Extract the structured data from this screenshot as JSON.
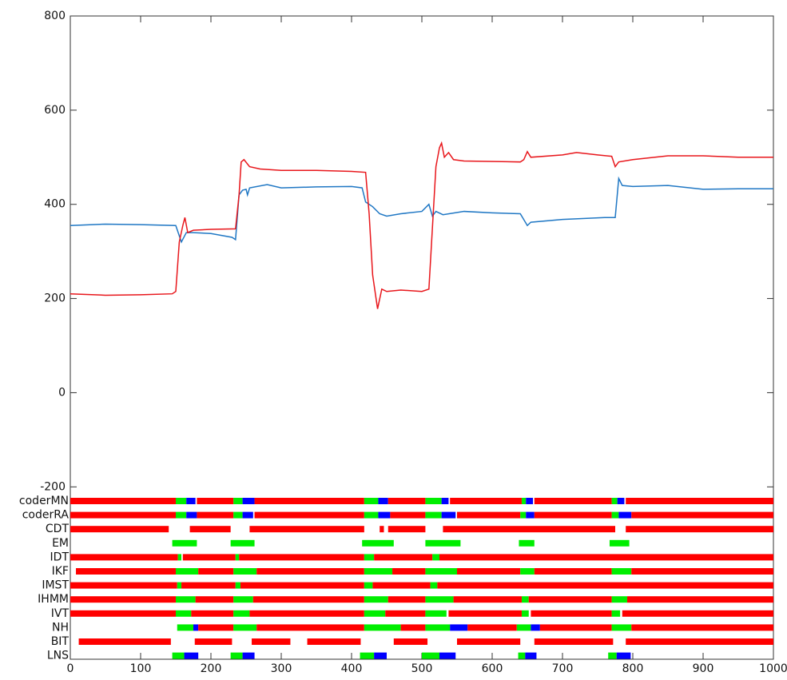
{
  "chart_data": {
    "type": "line",
    "xlim": [
      0,
      1000
    ],
    "ylim": [
      -566,
      800
    ],
    "xticks": [
      0,
      100,
      200,
      300,
      400,
      500,
      600,
      700,
      800,
      900,
      1000
    ],
    "yticks": [
      -200,
      0,
      200,
      400,
      600,
      800
    ],
    "series": [
      {
        "color": "#1f77c4",
        "x": [
          0,
          50,
          100,
          150,
          158,
          165,
          175,
          200,
          230,
          235,
          240,
          245,
          250,
          252,
          255,
          280,
          300,
          350,
          400,
          415,
          420,
          430,
          440,
          450,
          470,
          500,
          510,
          515,
          520,
          530,
          560,
          600,
          640,
          650,
          655,
          700,
          760,
          775,
          780,
          785,
          800,
          850,
          900,
          950,
          1000
        ],
        "values": [
          355,
          358,
          357,
          355,
          320,
          340,
          340,
          338,
          330,
          325,
          420,
          430,
          432,
          420,
          435,
          442,
          435,
          437,
          438,
          435,
          405,
          395,
          380,
          375,
          380,
          385,
          400,
          375,
          385,
          378,
          385,
          382,
          380,
          355,
          362,
          368,
          372,
          372,
          455,
          440,
          438,
          440,
          432,
          433,
          433
        ]
      },
      {
        "color": "#e8161b",
        "x": [
          0,
          50,
          100,
          145,
          150,
          155,
          160,
          163,
          167,
          175,
          200,
          235,
          240,
          243,
          247,
          255,
          270,
          300,
          350,
          400,
          420,
          425,
          430,
          437,
          443,
          450,
          470,
          500,
          510,
          515,
          520,
          525,
          528,
          532,
          538,
          545,
          560,
          640,
          645,
          650,
          655,
          700,
          720,
          750,
          770,
          775,
          780,
          800,
          850,
          900,
          950,
          1000
        ],
        "values": [
          210,
          207,
          208,
          210,
          215,
          320,
          355,
          372,
          340,
          345,
          347,
          348,
          420,
          490,
          495,
          480,
          475,
          472,
          472,
          470,
          468,
          380,
          250,
          178,
          220,
          215,
          218,
          215,
          220,
          350,
          480,
          520,
          530,
          500,
          510,
          495,
          492,
          490,
          495,
          512,
          500,
          505,
          510,
          505,
          502,
          480,
          490,
          495,
          503,
          503,
          500,
          500
        ]
      }
    ],
    "rows": [
      {
        "label": "coderMN",
        "segments": [
          [
            0,
            150,
            "#f00"
          ],
          [
            150,
            165,
            "#0e0"
          ],
          [
            165,
            178,
            "#00f"
          ],
          [
            180,
            232,
            "#f00"
          ],
          [
            232,
            245,
            "#0e0"
          ],
          [
            245,
            262,
            "#00f"
          ],
          [
            262,
            418,
            "#f00"
          ],
          [
            418,
            438,
            "#0e0"
          ],
          [
            438,
            452,
            "#00f"
          ],
          [
            452,
            505,
            "#f00"
          ],
          [
            505,
            528,
            "#0e0"
          ],
          [
            528,
            538,
            "#00f"
          ],
          [
            540,
            642,
            "#f00"
          ],
          [
            642,
            648,
            "#0e0"
          ],
          [
            648,
            658,
            "#00f"
          ],
          [
            660,
            770,
            "#f00"
          ],
          [
            770,
            778,
            "#0e0"
          ],
          [
            778,
            788,
            "#00f"
          ],
          [
            790,
            1000,
            "#f00"
          ]
        ]
      },
      {
        "label": "coderRA",
        "segments": [
          [
            0,
            150,
            "#f00"
          ],
          [
            150,
            165,
            "#0e0"
          ],
          [
            165,
            180,
            "#00f"
          ],
          [
            180,
            232,
            "#f00"
          ],
          [
            232,
            245,
            "#0e0"
          ],
          [
            245,
            260,
            "#00f"
          ],
          [
            262,
            418,
            "#f00"
          ],
          [
            418,
            438,
            "#0e0"
          ],
          [
            438,
            455,
            "#00f"
          ],
          [
            455,
            505,
            "#f00"
          ],
          [
            505,
            528,
            "#0e0"
          ],
          [
            528,
            548,
            "#00f"
          ],
          [
            550,
            640,
            "#f00"
          ],
          [
            640,
            648,
            "#0e0"
          ],
          [
            648,
            660,
            "#00f"
          ],
          [
            660,
            770,
            "#f00"
          ],
          [
            770,
            780,
            "#0e0"
          ],
          [
            780,
            798,
            "#00f"
          ],
          [
            798,
            1000,
            "#f00"
          ]
        ]
      },
      {
        "label": "CDT",
        "segments": [
          [
            0,
            140,
            "#f00"
          ],
          [
            170,
            228,
            "#f00"
          ],
          [
            255,
            418,
            "#f00"
          ],
          [
            440,
            446,
            "#f00"
          ],
          [
            452,
            505,
            "#f00"
          ],
          [
            530,
            775,
            "#f00"
          ],
          [
            790,
            1000,
            "#f00"
          ]
        ]
      },
      {
        "label": "EM",
        "segments": [
          [
            145,
            180,
            "#0e0"
          ],
          [
            228,
            262,
            "#0e0"
          ],
          [
            415,
            460,
            "#0e0"
          ],
          [
            505,
            555,
            "#0e0"
          ],
          [
            638,
            660,
            "#0e0"
          ],
          [
            767,
            795,
            "#0e0"
          ]
        ]
      },
      {
        "label": "IDT",
        "segments": [
          [
            0,
            153,
            "#f00"
          ],
          [
            153,
            158,
            "#0e0"
          ],
          [
            160,
            235,
            "#f00"
          ],
          [
            235,
            240,
            "#0e0"
          ],
          [
            240,
            418,
            "#f00"
          ],
          [
            418,
            432,
            "#0e0"
          ],
          [
            432,
            515,
            "#f00"
          ],
          [
            515,
            525,
            "#0e0"
          ],
          [
            525,
            1000,
            "#f00"
          ]
        ]
      },
      {
        "label": "IKF",
        "segments": [
          [
            8,
            150,
            "#f00"
          ],
          [
            150,
            182,
            "#0e0"
          ],
          [
            182,
            232,
            "#f00"
          ],
          [
            232,
            265,
            "#0e0"
          ],
          [
            265,
            418,
            "#f00"
          ],
          [
            418,
            458,
            "#0e0"
          ],
          [
            458,
            505,
            "#f00"
          ],
          [
            505,
            550,
            "#0e0"
          ],
          [
            550,
            640,
            "#f00"
          ],
          [
            640,
            660,
            "#0e0"
          ],
          [
            660,
            770,
            "#f00"
          ],
          [
            770,
            798,
            "#0e0"
          ],
          [
            798,
            1000,
            "#f00"
          ]
        ]
      },
      {
        "label": "IMST",
        "segments": [
          [
            0,
            152,
            "#f00"
          ],
          [
            152,
            158,
            "#0e0"
          ],
          [
            158,
            235,
            "#f00"
          ],
          [
            235,
            242,
            "#0e0"
          ],
          [
            242,
            418,
            "#f00"
          ],
          [
            418,
            430,
            "#0e0"
          ],
          [
            430,
            512,
            "#f00"
          ],
          [
            512,
            522,
            "#0e0"
          ],
          [
            522,
            1000,
            "#f00"
          ]
        ]
      },
      {
        "label": "IHMM",
        "segments": [
          [
            0,
            150,
            "#f00"
          ],
          [
            150,
            178,
            "#0e0"
          ],
          [
            178,
            232,
            "#f00"
          ],
          [
            232,
            260,
            "#0e0"
          ],
          [
            260,
            418,
            "#f00"
          ],
          [
            418,
            452,
            "#0e0"
          ],
          [
            452,
            505,
            "#f00"
          ],
          [
            505,
            545,
            "#0e0"
          ],
          [
            545,
            642,
            "#f00"
          ],
          [
            642,
            652,
            "#0e0"
          ],
          [
            652,
            770,
            "#f00"
          ],
          [
            770,
            792,
            "#0e0"
          ],
          [
            792,
            1000,
            "#f00"
          ]
        ]
      },
      {
        "label": "IVT",
        "segments": [
          [
            0,
            150,
            "#f00"
          ],
          [
            150,
            172,
            "#0e0"
          ],
          [
            172,
            232,
            "#f00"
          ],
          [
            232,
            255,
            "#0e0"
          ],
          [
            255,
            418,
            "#f00"
          ],
          [
            418,
            448,
            "#0e0"
          ],
          [
            448,
            505,
            "#f00"
          ],
          [
            505,
            535,
            "#0e0"
          ],
          [
            538,
            642,
            "#f00"
          ],
          [
            642,
            652,
            "#0e0"
          ],
          [
            655,
            770,
            "#f00"
          ],
          [
            770,
            782,
            "#0e0"
          ],
          [
            785,
            1000,
            "#f00"
          ]
        ]
      },
      {
        "label": "NH",
        "segments": [
          [
            152,
            175,
            "#0e0"
          ],
          [
            175,
            182,
            "#00f"
          ],
          [
            182,
            232,
            "#f00"
          ],
          [
            232,
            265,
            "#0e0"
          ],
          [
            265,
            418,
            "#f00"
          ],
          [
            418,
            470,
            "#0e0"
          ],
          [
            470,
            505,
            "#f00"
          ],
          [
            505,
            540,
            "#0e0"
          ],
          [
            540,
            565,
            "#00f"
          ],
          [
            565,
            635,
            "#f00"
          ],
          [
            635,
            655,
            "#0e0"
          ],
          [
            655,
            668,
            "#00f"
          ],
          [
            668,
            770,
            "#f00"
          ],
          [
            770,
            798,
            "#0e0"
          ],
          [
            798,
            1000,
            "#f00"
          ]
        ]
      },
      {
        "label": "BIT",
        "segments": [
          [
            12,
            143,
            "#f00"
          ],
          [
            177,
            230,
            "#f00"
          ],
          [
            258,
            313,
            "#f00"
          ],
          [
            337,
            413,
            "#f00"
          ],
          [
            460,
            508,
            "#f00"
          ],
          [
            550,
            640,
            "#f00"
          ],
          [
            660,
            772,
            "#f00"
          ],
          [
            790,
            1000,
            "#f00"
          ]
        ]
      },
      {
        "label": "LNS",
        "segments": [
          [
            145,
            162,
            "#0e0"
          ],
          [
            162,
            182,
            "#00f"
          ],
          [
            228,
            245,
            "#0e0"
          ],
          [
            245,
            262,
            "#00f"
          ],
          [
            412,
            432,
            "#0e0"
          ],
          [
            432,
            450,
            "#00f"
          ],
          [
            500,
            525,
            "#0e0"
          ],
          [
            525,
            548,
            "#00f"
          ],
          [
            637,
            647,
            "#0e0"
          ],
          [
            647,
            663,
            "#00f"
          ],
          [
            765,
            777,
            "#0e0"
          ],
          [
            777,
            797,
            "#00f"
          ]
        ]
      }
    ]
  }
}
